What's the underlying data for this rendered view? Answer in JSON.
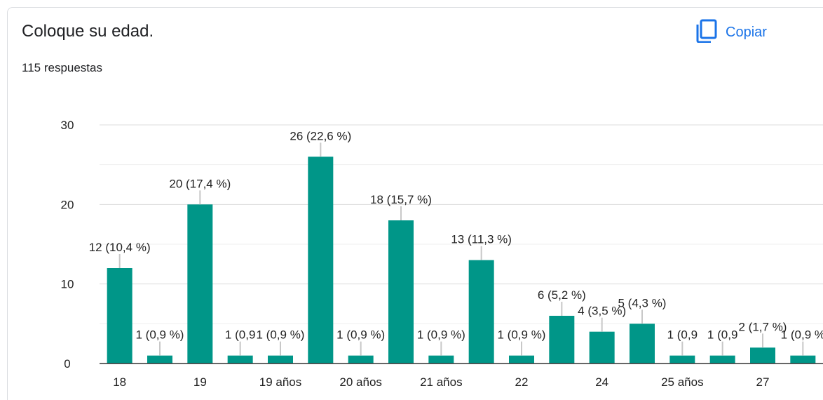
{
  "header": {
    "title": "Coloque su edad.",
    "responses": "115 respuestas",
    "copy_label": "Copiar"
  },
  "icons": {
    "copy": "copy-icon"
  },
  "colors": {
    "bar": "#009688",
    "accent": "#1a73e8"
  },
  "chart_data": {
    "type": "bar",
    "title": "Coloque su edad.",
    "xlabel": "",
    "ylabel": "",
    "ylim": [
      0,
      30
    ],
    "yticks": [
      "0",
      "10",
      "20",
      "30"
    ],
    "grid": true,
    "categories": [
      "18",
      "",
      "19",
      "",
      "19 años",
      "",
      "20 años",
      "",
      "21 años",
      "",
      "22",
      "",
      "24",
      "",
      "25 años",
      "",
      "27",
      ""
    ],
    "values": [
      12,
      1,
      20,
      1,
      1,
      26,
      1,
      18,
      1,
      13,
      1,
      6,
      4,
      5,
      1,
      1,
      2,
      1
    ],
    "data_labels": [
      "12 (10,4 %)",
      "1 (0,9 %)",
      "20 (17,4 %)",
      "1 (0,9",
      "1 (0,9 %)",
      "26 (22,6 %)",
      "1 (0,9 %)",
      "18 (15,7 %)",
      "1 (0,9 %)",
      "13 (11,3 %)",
      "1 (0,9 %)",
      "6 (5,2 %)",
      "4 (3,5 %)",
      "5 (4,3 %)",
      "1 (0,9",
      "1 (0,9",
      "2 (1,7 %)",
      "1 (0,9 %"
    ],
    "x_tick_labels": [
      "18",
      "19",
      "19 años",
      "20 años",
      "21 años",
      "22",
      "24",
      "25 años",
      "27"
    ]
  }
}
